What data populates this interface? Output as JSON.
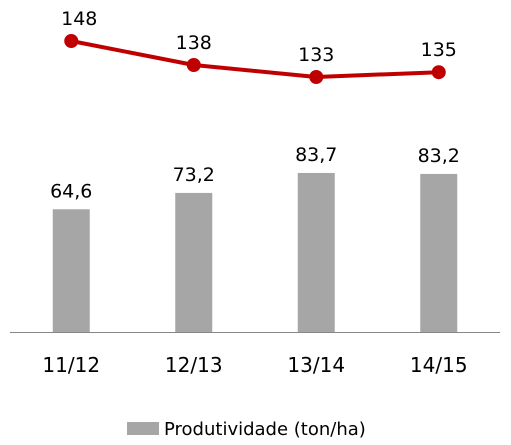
{
  "chart_data": {
    "type": "bar",
    "title": "",
    "xlabel": "",
    "ylabel": "",
    "categories": [
      "11/12",
      "12/13",
      "13/14",
      "14/15"
    ],
    "series": [
      {
        "name": "Produtividade (ton/ha)",
        "type": "bar",
        "values": [
          64.6,
          73.2,
          83.7,
          83.2
        ],
        "labels": [
          "64,6",
          "73,2",
          "83,7",
          "83,2"
        ],
        "color": "#a6a6a6"
      },
      {
        "type": "line",
        "values": [
          148,
          138,
          133,
          135
        ],
        "labels": [
          "148",
          "138",
          "133",
          "135"
        ],
        "color": "#c00000"
      }
    ],
    "legend": {
      "position": "bottom-center",
      "entries": [
        "Produtividade (ton/ha)"
      ]
    },
    "grid": false
  }
}
